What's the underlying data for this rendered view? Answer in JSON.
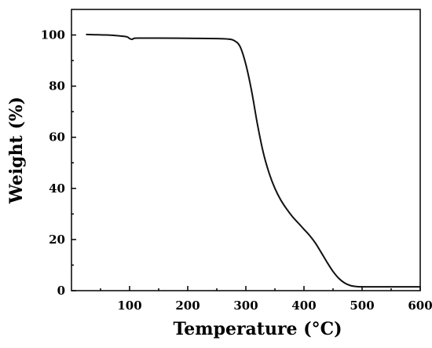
{
  "chart_data": {
    "type": "line",
    "title": "",
    "xlabel": "Temperature (°C)",
    "ylabel": "Weight (%)",
    "xlim": [
      0,
      600
    ],
    "ylim": [
      0,
      110
    ],
    "grid": false,
    "x_ticks": [
      100,
      200,
      300,
      400,
      500,
      600
    ],
    "y_ticks": [
      0,
      20,
      40,
      60,
      80,
      100
    ],
    "x_tick_labels": [
      "100",
      "200",
      "300",
      "400",
      "500",
      "600"
    ],
    "y_tick_labels": [
      "0",
      "20",
      "40",
      "60",
      "80",
      "100"
    ],
    "series": [
      {
        "color": "#111111",
        "x": [
          25,
          40,
          60,
          80,
          95,
          100,
          104,
          108,
          115,
          150,
          200,
          250,
          270,
          280,
          290,
          300,
          310,
          320,
          330,
          340,
          350,
          360,
          370,
          380,
          390,
          400,
          410,
          420,
          430,
          440,
          450,
          460,
          470,
          480,
          490,
          500,
          520,
          550,
          600
        ],
        "y": [
          100.2,
          100.1,
          100.0,
          99.7,
          99.3,
          98.6,
          98.3,
          98.7,
          98.8,
          98.8,
          98.7,
          98.6,
          98.4,
          97.8,
          95.5,
          88.5,
          78.0,
          65.0,
          54.0,
          46.0,
          40.0,
          35.5,
          32.0,
          29.0,
          26.5,
          24.0,
          21.5,
          18.5,
          14.8,
          11.0,
          7.5,
          4.8,
          3.0,
          2.0,
          1.6,
          1.5,
          1.5,
          1.5,
          1.5
        ]
      }
    ]
  }
}
